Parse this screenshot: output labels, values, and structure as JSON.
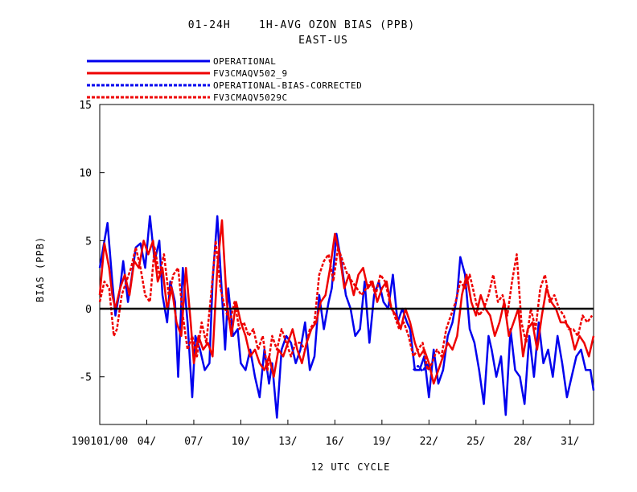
{
  "chart_data": {
    "type": "line",
    "title_line1": "01-24H    1H-AVG OZON BIAS (PPB)",
    "title_line2": "EAST-US",
    "xlabel": "12 UTC CYCLE",
    "ylabel": "BIAS (PPB)",
    "ylim": [
      -8.5,
      15
    ],
    "xlim": [
      1,
      32.5
    ],
    "yticks": [
      15,
      10,
      5,
      0,
      -5
    ],
    "ytick_labels": [
      "15",
      "10",
      "5",
      "0",
      "-5"
    ],
    "xticks": [
      1,
      4,
      7,
      10,
      13,
      16,
      19,
      22,
      25,
      28,
      31
    ],
    "xtick_labels": [
      "190101/00",
      "04/",
      "07/",
      "10/",
      "13/",
      "16/",
      "19/",
      "22/",
      "25/",
      "28/",
      "31/"
    ],
    "zero_line": true,
    "grid": false,
    "legend_position": "top-left",
    "series": [
      {
        "name": "OPERATIONAL",
        "color": "#0000ee",
        "dash": "solid",
        "x": [
          1.0,
          1.5,
          1.8,
          2.0,
          2.3,
          2.5,
          2.8,
          3.0,
          3.3,
          3.6,
          3.9,
          4.2,
          4.5,
          4.8,
          5.0,
          5.3,
          5.5,
          5.8,
          6.0,
          6.3,
          6.6,
          6.9,
          7.1,
          7.4,
          7.7,
          8.0,
          8.2,
          8.5,
          8.8,
          9.0,
          9.2,
          9.5,
          9.8,
          10.0,
          10.3,
          10.6,
          10.9,
          11.2,
          11.5,
          11.8,
          12.0,
          12.3,
          12.6,
          12.9,
          13.2,
          13.5,
          13.8,
          14.1,
          14.4,
          14.7,
          15.0,
          15.3,
          15.6,
          15.8,
          16.1,
          16.4,
          16.7,
          17.0,
          17.3,
          17.6,
          17.9,
          18.2,
          18.5,
          18.8,
          19.1,
          19.4,
          19.7,
          20.0,
          20.3,
          20.6,
          20.8,
          21.1,
          21.4,
          21.7,
          22.0,
          22.3,
          22.6,
          22.9,
          23.2,
          23.5,
          23.8,
          24.0,
          24.3,
          24.6,
          24.9,
          25.2,
          25.5,
          25.8,
          26.0,
          26.3,
          26.6,
          26.9,
          27.2,
          27.5,
          27.8,
          28.1,
          28.4,
          28.7,
          29.0,
          29.3,
          29.6,
          29.9,
          30.2,
          30.5,
          30.8,
          31.1,
          31.4,
          31.7,
          32.0,
          32.3,
          32.5
        ],
        "values": [
          3.0,
          6.3,
          2.0,
          -0.5,
          1.5,
          3.5,
          0.5,
          2.0,
          4.5,
          4.8,
          3.0,
          6.8,
          3.5,
          5.0,
          1.0,
          -1.0,
          2.0,
          0.5,
          -5.0,
          3.0,
          -1.0,
          -6.5,
          -2.0,
          -3.0,
          -4.5,
          -4.0,
          2.0,
          6.8,
          1.0,
          -3.0,
          1.5,
          -2.0,
          -1.5,
          -4.0,
          -4.5,
          -3.0,
          -5.0,
          -6.5,
          -3.0,
          -5.5,
          -4.0,
          -8.0,
          -3.0,
          -2.0,
          -2.5,
          -4.0,
          -3.0,
          -1.0,
          -4.5,
          -3.5,
          1.0,
          -1.5,
          0.5,
          1.5,
          5.5,
          3.5,
          1.0,
          0.0,
          -2.0,
          -1.5,
          2.0,
          -2.5,
          1.0,
          2.0,
          0.5,
          0.0,
          2.5,
          -1.0,
          0.0,
          -1.0,
          -1.5,
          -4.5,
          -4.5,
          -3.5,
          -6.5,
          -3.0,
          -5.5,
          -4.5,
          -2.0,
          -1.0,
          1.0,
          3.8,
          2.5,
          -1.5,
          -2.5,
          -4.5,
          -7.0,
          -2.0,
          -3.0,
          -5.0,
          -3.5,
          -7.8,
          -1.5,
          -4.5,
          -5.0,
          -7.0,
          -2.0,
          -5.0,
          -1.0,
          -4.0,
          -3.0,
          -5.0,
          -2.0,
          -4.0,
          -6.5,
          -5.0,
          -3.5,
          -3.0,
          -4.5,
          -4.5,
          -6.0
        ]
      },
      {
        "name": "FV3CMAQV502_9",
        "color": "#ee0000",
        "dash": "solid",
        "x": [
          1.0,
          1.3,
          1.6,
          1.8,
          2.0,
          2.3,
          2.6,
          2.9,
          3.2,
          3.5,
          3.8,
          4.1,
          4.4,
          4.7,
          5.0,
          5.3,
          5.6,
          5.9,
          6.2,
          6.5,
          6.8,
          7.0,
          7.3,
          7.6,
          7.9,
          8.2,
          8.5,
          8.8,
          9.1,
          9.4,
          9.7,
          10.0,
          10.3,
          10.6,
          10.9,
          11.2,
          11.5,
          11.8,
          12.1,
          12.4,
          12.7,
          13.0,
          13.3,
          13.6,
          13.9,
          14.2,
          14.5,
          14.8,
          15.1,
          15.4,
          15.7,
          16.0,
          16.3,
          16.6,
          16.9,
          17.2,
          17.5,
          17.8,
          18.1,
          18.4,
          18.7,
          19.0,
          19.3,
          19.6,
          19.9,
          20.2,
          20.5,
          20.8,
          21.1,
          21.4,
          21.7,
          22.0,
          22.3,
          22.6,
          22.9,
          23.2,
          23.5,
          23.8,
          24.1,
          24.4,
          24.7,
          25.0,
          25.3,
          25.6,
          25.9,
          26.2,
          26.5,
          26.8,
          27.1,
          27.4,
          27.7,
          28.0,
          28.3,
          28.6,
          28.9,
          29.2,
          29.5,
          29.8,
          30.1,
          30.4,
          30.7,
          31.0,
          31.3,
          31.6,
          31.9,
          32.2,
          32.5
        ],
        "values": [
          1.0,
          4.8,
          3.0,
          1.0,
          0.0,
          1.5,
          2.5,
          1.0,
          3.5,
          3.0,
          5.0,
          4.0,
          5.0,
          2.0,
          3.0,
          0.0,
          1.5,
          -1.0,
          -2.0,
          3.0,
          -1.0,
          -4.0,
          -2.0,
          -3.0,
          -2.5,
          -3.5,
          3.0,
          6.5,
          0.5,
          -2.0,
          0.5,
          -1.0,
          -2.0,
          -3.5,
          -3.0,
          -4.0,
          -4.5,
          -3.5,
          -5.0,
          -3.0,
          -3.5,
          -2.5,
          -1.5,
          -3.0,
          -4.0,
          -2.5,
          -1.5,
          -1.0,
          0.5,
          1.0,
          3.0,
          5.5,
          4.0,
          1.5,
          2.5,
          1.0,
          2.5,
          3.0,
          1.5,
          2.0,
          0.5,
          1.5,
          2.0,
          0.0,
          -0.5,
          -1.5,
          0.0,
          -1.0,
          -2.5,
          -3.5,
          -3.0,
          -4.0,
          -5.5,
          -4.5,
          -3.5,
          -2.5,
          -3.0,
          -2.0,
          1.0,
          2.5,
          0.5,
          -0.5,
          1.0,
          0.0,
          -0.5,
          -2.0,
          -1.0,
          0.5,
          -2.0,
          -1.0,
          0.0,
          -3.5,
          -1.5,
          -1.0,
          -3.0,
          -0.5,
          1.5,
          0.5,
          0.0,
          -1.0,
          -1.0,
          -1.5,
          -3.0,
          -2.0,
          -2.5,
          -3.5,
          -2.0
        ]
      },
      {
        "name": "OPERATIONAL-BIAS-CORRECTED",
        "color": "#0000ee",
        "dash": "dashed",
        "x": [
          21.0,
          21.3,
          21.6,
          21.9,
          22.0
        ],
        "values": [
          -4.5,
          -4.2,
          -4.6,
          -4.0,
          -4.5
        ]
      },
      {
        "name": "FV3CMAQV5029C",
        "color": "#ee0000",
        "dash": "dashed",
        "x": [
          1.0,
          1.3,
          1.6,
          1.9,
          2.1,
          2.4,
          2.7,
          3.0,
          3.3,
          3.6,
          3.9,
          4.2,
          4.5,
          4.8,
          5.1,
          5.4,
          5.7,
          6.0,
          6.3,
          6.6,
          6.9,
          7.2,
          7.5,
          7.8,
          8.1,
          8.4,
          8.7,
          9.0,
          9.3,
          9.6,
          9.9,
          10.2,
          10.5,
          10.8,
          11.1,
          11.4,
          11.7,
          12.0,
          12.3,
          12.6,
          12.9,
          13.2,
          13.5,
          13.8,
          14.1,
          14.4,
          14.7,
          15.0,
          15.3,
          15.6,
          15.9,
          16.2,
          16.5,
          16.8,
          17.1,
          17.4,
          17.7,
          18.0,
          18.3,
          18.6,
          18.9,
          19.2,
          19.5,
          19.8,
          20.1,
          20.4,
          20.7,
          21.0,
          21.3,
          21.6,
          21.9,
          22.2,
          22.5,
          22.8,
          23.1,
          23.4,
          23.7,
          24.0,
          24.3,
          24.6,
          24.9,
          25.2,
          25.5,
          25.8,
          26.1,
          26.4,
          26.7,
          27.0,
          27.3,
          27.6,
          27.9,
          28.2,
          28.5,
          28.8,
          29.1,
          29.4,
          29.7,
          30.0,
          30.3,
          30.6,
          30.9,
          31.2,
          31.5,
          31.8,
          32.1,
          32.4
        ],
        "values": [
          0.5,
          2.0,
          1.5,
          -2.0,
          -1.5,
          1.0,
          2.0,
          3.0,
          4.5,
          3.0,
          1.0,
          0.5,
          4.5,
          2.5,
          4.0,
          1.0,
          2.5,
          3.0,
          -0.5,
          -3.0,
          -2.0,
          -3.5,
          -1.0,
          -2.5,
          1.0,
          5.0,
          1.5,
          0.0,
          -1.0,
          0.5,
          -1.5,
          -1.0,
          -2.0,
          -1.5,
          -3.0,
          -2.0,
          -4.5,
          -2.0,
          -3.0,
          -1.5,
          -2.5,
          -3.5,
          -2.5,
          -2.5,
          -3.0,
          -1.5,
          -1.0,
          2.5,
          3.5,
          4.0,
          2.0,
          4.5,
          3.5,
          2.5,
          2.0,
          1.5,
          1.0,
          1.5,
          2.0,
          1.0,
          2.5,
          2.0,
          0.5,
          -0.5,
          -1.5,
          -1.0,
          -2.0,
          -3.5,
          -3.0,
          -2.5,
          -4.5,
          -4.0,
          -3.0,
          -3.5,
          -1.5,
          -0.5,
          0.5,
          2.0,
          1.5,
          2.5,
          1.0,
          -0.5,
          0.0,
          1.0,
          2.5,
          0.5,
          1.0,
          -0.5,
          2.0,
          4.0,
          -1.0,
          -2.5,
          0.0,
          -1.5,
          1.5,
          2.5,
          0.5,
          1.0,
          0.0,
          -0.5,
          -1.5,
          -1.5,
          -2.0,
          -0.5,
          -1.0,
          -0.5
        ]
      }
    ]
  }
}
